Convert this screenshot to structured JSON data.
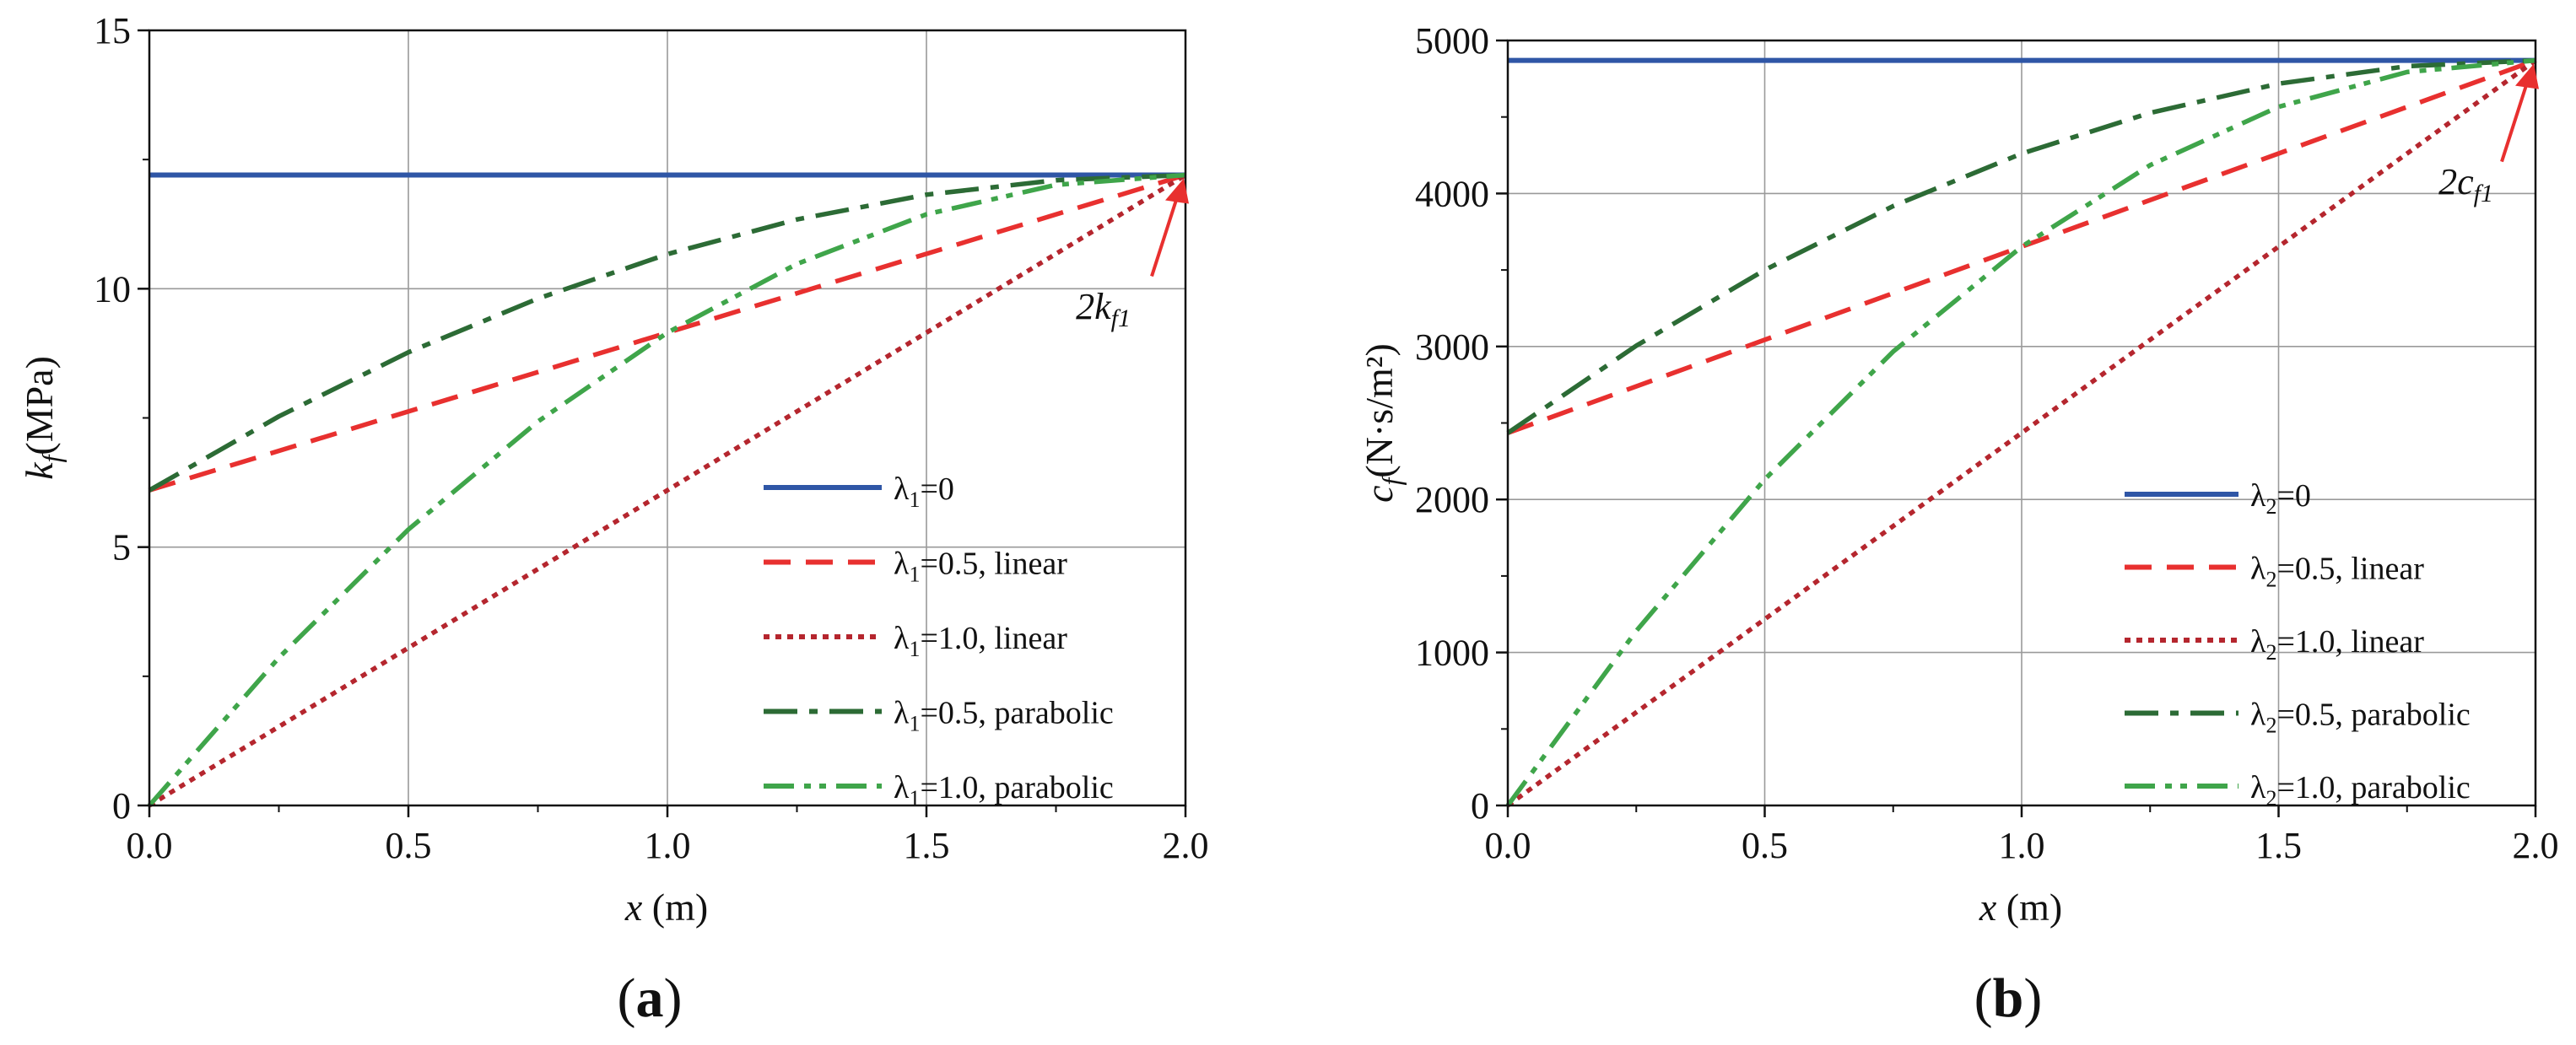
{
  "chart_data": [
    {
      "id": "a",
      "type": "line",
      "panel_label": "(a)",
      "xlabel_var": "x",
      "xlabel_unit": " (m)",
      "ylabel_var": "k",
      "ylabel_sub": "f",
      "ylabel_unit": "(MPa)",
      "xlim": [
        0,
        2.0
      ],
      "ylim": [
        0,
        15
      ],
      "xticks": [
        0,
        0.5,
        1.0,
        1.5,
        2.0
      ],
      "xtick_labels": [
        "0.0",
        "0.5",
        "1.0",
        "1.5",
        "2.0"
      ],
      "yticks": [
        0,
        5,
        10,
        15
      ],
      "ytick_labels": [
        "0",
        "5",
        "10",
        "15"
      ],
      "grid": true,
      "legend_position": "right-middle",
      "annotation": {
        "text_main": "2k",
        "text_sub": "f1",
        "target": [
          2.0,
          12.2
        ]
      },
      "series": [
        {
          "name": "λ1=0",
          "greek": "λ",
          "sub": "1",
          "suffix": "=0",
          "style": "solid",
          "color": "#2f56a6",
          "x": [
            0,
            2.0
          ],
          "y": [
            12.2,
            12.2
          ]
        },
        {
          "name": "λ1=0.5, linear",
          "greek": "λ",
          "sub": "1",
          "suffix": "=0.5, linear",
          "style": "dash",
          "color": "#e8302f",
          "x": [
            0,
            2.0
          ],
          "y": [
            6.1,
            12.2
          ]
        },
        {
          "name": "λ1=1.0, linear",
          "greek": "λ",
          "sub": "1",
          "suffix": "=1.0, linear",
          "style": "dot",
          "color": "#b5262e",
          "x": [
            0,
            2.0
          ],
          "y": [
            0,
            12.2
          ]
        },
        {
          "name": "λ1=0.5, parabolic",
          "greek": "λ",
          "sub": "1",
          "suffix": "=0.5, parabolic",
          "style": "dashdot",
          "color": "#2c6b35",
          "x": [
            0,
            0.25,
            0.5,
            0.75,
            1.0,
            1.25,
            1.5,
            1.75,
            2.0
          ],
          "y": [
            6.1,
            7.53,
            8.77,
            9.81,
            10.67,
            11.34,
            11.82,
            12.1,
            12.2
          ]
        },
        {
          "name": "λ1=1.0, parabolic",
          "greek": "λ",
          "sub": "1",
          "suffix": "=1.0, parabolic",
          "style": "dashdotdot",
          "color": "#3fa54a",
          "x": [
            0,
            0.25,
            0.5,
            0.75,
            1.0,
            1.25,
            1.5,
            1.75,
            2.0
          ],
          "y": [
            0,
            2.86,
            5.34,
            7.43,
            9.15,
            10.48,
            11.44,
            12.01,
            12.2
          ]
        }
      ]
    },
    {
      "id": "b",
      "type": "line",
      "panel_label": "(b)",
      "xlabel_var": "x",
      "xlabel_unit": " (m)",
      "ylabel_var": "c",
      "ylabel_sub": "f",
      "ylabel_unit": "(N·s/m²)",
      "xlim": [
        0,
        2.0
      ],
      "ylim": [
        0,
        5000
      ],
      "xticks": [
        0,
        0.5,
        1.0,
        1.5,
        2.0
      ],
      "xtick_labels": [
        "0.0",
        "0.5",
        "1.0",
        "1.5",
        "2.0"
      ],
      "yticks": [
        0,
        1000,
        2000,
        3000,
        4000,
        5000
      ],
      "ytick_labels": [
        "0",
        "1000",
        "2000",
        "3000",
        "4000",
        "5000"
      ],
      "grid": true,
      "legend_position": "right-lower",
      "annotation": {
        "text_main": "2c",
        "text_sub": "f1",
        "target": [
          2.0,
          4870
        ]
      },
      "series": [
        {
          "name": "λ2=0",
          "greek": "λ",
          "sub": "2",
          "suffix": "=0",
          "style": "solid",
          "color": "#2f56a6",
          "x": [
            0,
            2.0
          ],
          "y": [
            4870,
            4870
          ]
        },
        {
          "name": "λ2=0.5, linear",
          "greek": "λ",
          "sub": "2",
          "suffix": "=0.5, linear",
          "style": "dash",
          "color": "#e8302f",
          "x": [
            0,
            2.0
          ],
          "y": [
            2435,
            4870
          ]
        },
        {
          "name": "λ2=1.0, linear",
          "greek": "λ",
          "sub": "2",
          "suffix": "=1.0, linear",
          "style": "dot",
          "color": "#b5262e",
          "x": [
            0,
            2.0
          ],
          "y": [
            0,
            4870
          ]
        },
        {
          "name": "λ2=0.5, parabolic",
          "greek": "λ",
          "sub": "2",
          "suffix": "=0.5, parabolic",
          "style": "dashdot",
          "color": "#2c6b35",
          "x": [
            0,
            0.25,
            0.5,
            0.75,
            1.0,
            1.25,
            1.5,
            1.75,
            2.0
          ],
          "y": [
            2435,
            3005,
            3500,
            3918,
            4261,
            4527,
            4718,
            4832,
            4870
          ]
        },
        {
          "name": "λ2=1.0, parabolic",
          "greek": "λ",
          "sub": "2",
          "suffix": "=1.0, parabolic",
          "style": "dashdotdot",
          "color": "#3fa54a",
          "x": [
            0,
            0.25,
            0.5,
            0.75,
            1.0,
            1.25,
            1.5,
            1.75,
            2.0
          ],
          "y": [
            0,
            1141,
            2131,
            2967,
            3652,
            4185,
            4566,
            4794,
            4870
          ]
        }
      ]
    }
  ]
}
